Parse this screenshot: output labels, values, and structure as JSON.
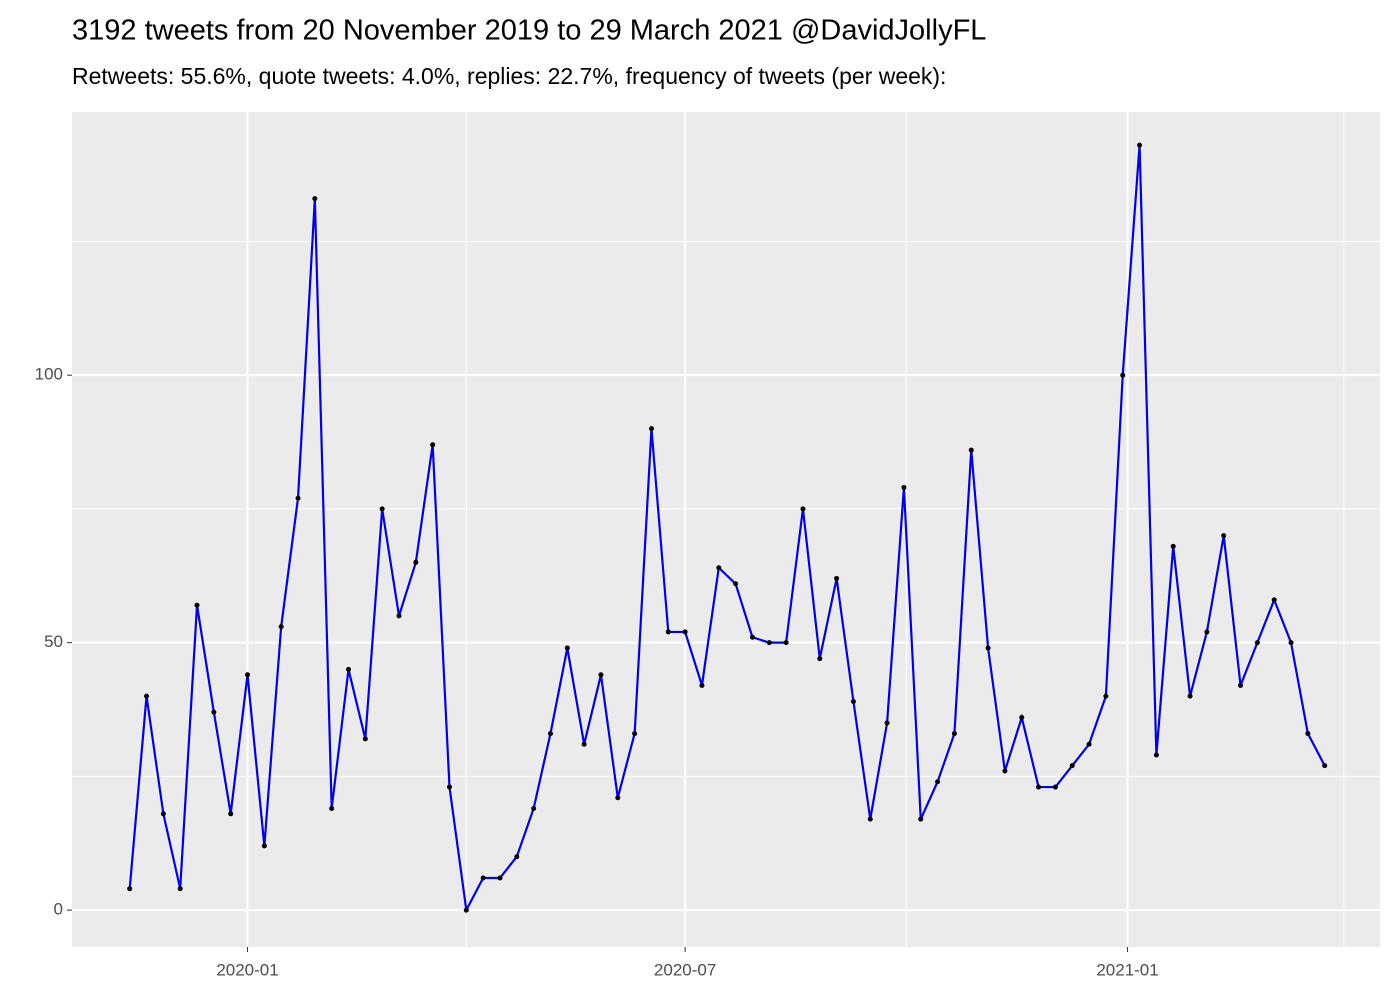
{
  "chart_data": {
    "type": "line",
    "title": "3192 tweets from 20 November 2019 to 29 March 2021 @DavidJollyFL",
    "subtitle": "Retweets: 55.6%, quote tweets: 4.0%, replies: 22.7%, frequency of tweets (per week):",
    "x": [
      "2019-11-13",
      "2019-11-20",
      "2019-11-27",
      "2019-12-04",
      "2019-12-11",
      "2019-12-18",
      "2019-12-25",
      "2020-01-01",
      "2020-01-08",
      "2020-01-15",
      "2020-01-22",
      "2020-01-29",
      "2020-02-05",
      "2020-02-12",
      "2020-02-19",
      "2020-02-26",
      "2020-03-04",
      "2020-03-11",
      "2020-03-18",
      "2020-03-25",
      "2020-04-01",
      "2020-04-08",
      "2020-04-15",
      "2020-04-22",
      "2020-04-29",
      "2020-05-06",
      "2020-05-13",
      "2020-05-20",
      "2020-05-27",
      "2020-06-03",
      "2020-06-10",
      "2020-06-17",
      "2020-06-24",
      "2020-07-01",
      "2020-07-08",
      "2020-07-15",
      "2020-07-22",
      "2020-07-29",
      "2020-08-05",
      "2020-08-12",
      "2020-08-19",
      "2020-08-26",
      "2020-09-02",
      "2020-09-09",
      "2020-09-16",
      "2020-09-23",
      "2020-09-30",
      "2020-10-07",
      "2020-10-14",
      "2020-10-21",
      "2020-10-28",
      "2020-11-04",
      "2020-11-11",
      "2020-11-18",
      "2020-11-25",
      "2020-12-02",
      "2020-12-09",
      "2020-12-16",
      "2020-12-23",
      "2020-12-30",
      "2021-01-06",
      "2021-01-13",
      "2021-01-20",
      "2021-01-27",
      "2021-02-03",
      "2021-02-10",
      "2021-02-17",
      "2021-02-24",
      "2021-03-03",
      "2021-03-10",
      "2021-03-17",
      "2021-03-24"
    ],
    "series": [
      {
        "color": "#0000ee",
        "point_color": "#000000",
        "values": [
          4,
          40,
          18,
          4,
          57,
          37,
          18,
          44,
          12,
          53,
          77,
          133,
          19,
          45,
          32,
          75,
          55,
          65,
          87,
          23,
          0,
          6,
          6,
          10,
          19,
          33,
          49,
          31,
          44,
          21,
          33,
          90,
          52,
          52,
          42,
          64,
          61,
          51,
          50,
          50,
          75,
          47,
          62,
          39,
          17,
          35,
          79,
          17,
          24,
          33,
          86,
          49,
          26,
          36,
          23,
          23,
          27,
          31,
          40,
          100,
          143,
          29,
          68,
          40,
          52,
          70,
          42,
          50,
          58,
          50,
          33,
          27
        ]
      }
    ],
    "xlim": [
      "2019-10-20",
      "2021-04-16"
    ],
    "xticks": [
      {
        "value": "2020-01-01",
        "label": "2020-01"
      },
      {
        "value": "2020-07-01",
        "label": "2020-07"
      },
      {
        "value": "2021-01-01",
        "label": "2021-01"
      }
    ],
    "minor_xticks": [
      "2020-04-01",
      "2020-10-01",
      "2021-04-01"
    ],
    "ylim": [
      -6.9,
      149.2
    ],
    "yticks": [
      0,
      50,
      100
    ],
    "minor_yticks": [
      25,
      75,
      125
    ],
    "grid": true
  }
}
